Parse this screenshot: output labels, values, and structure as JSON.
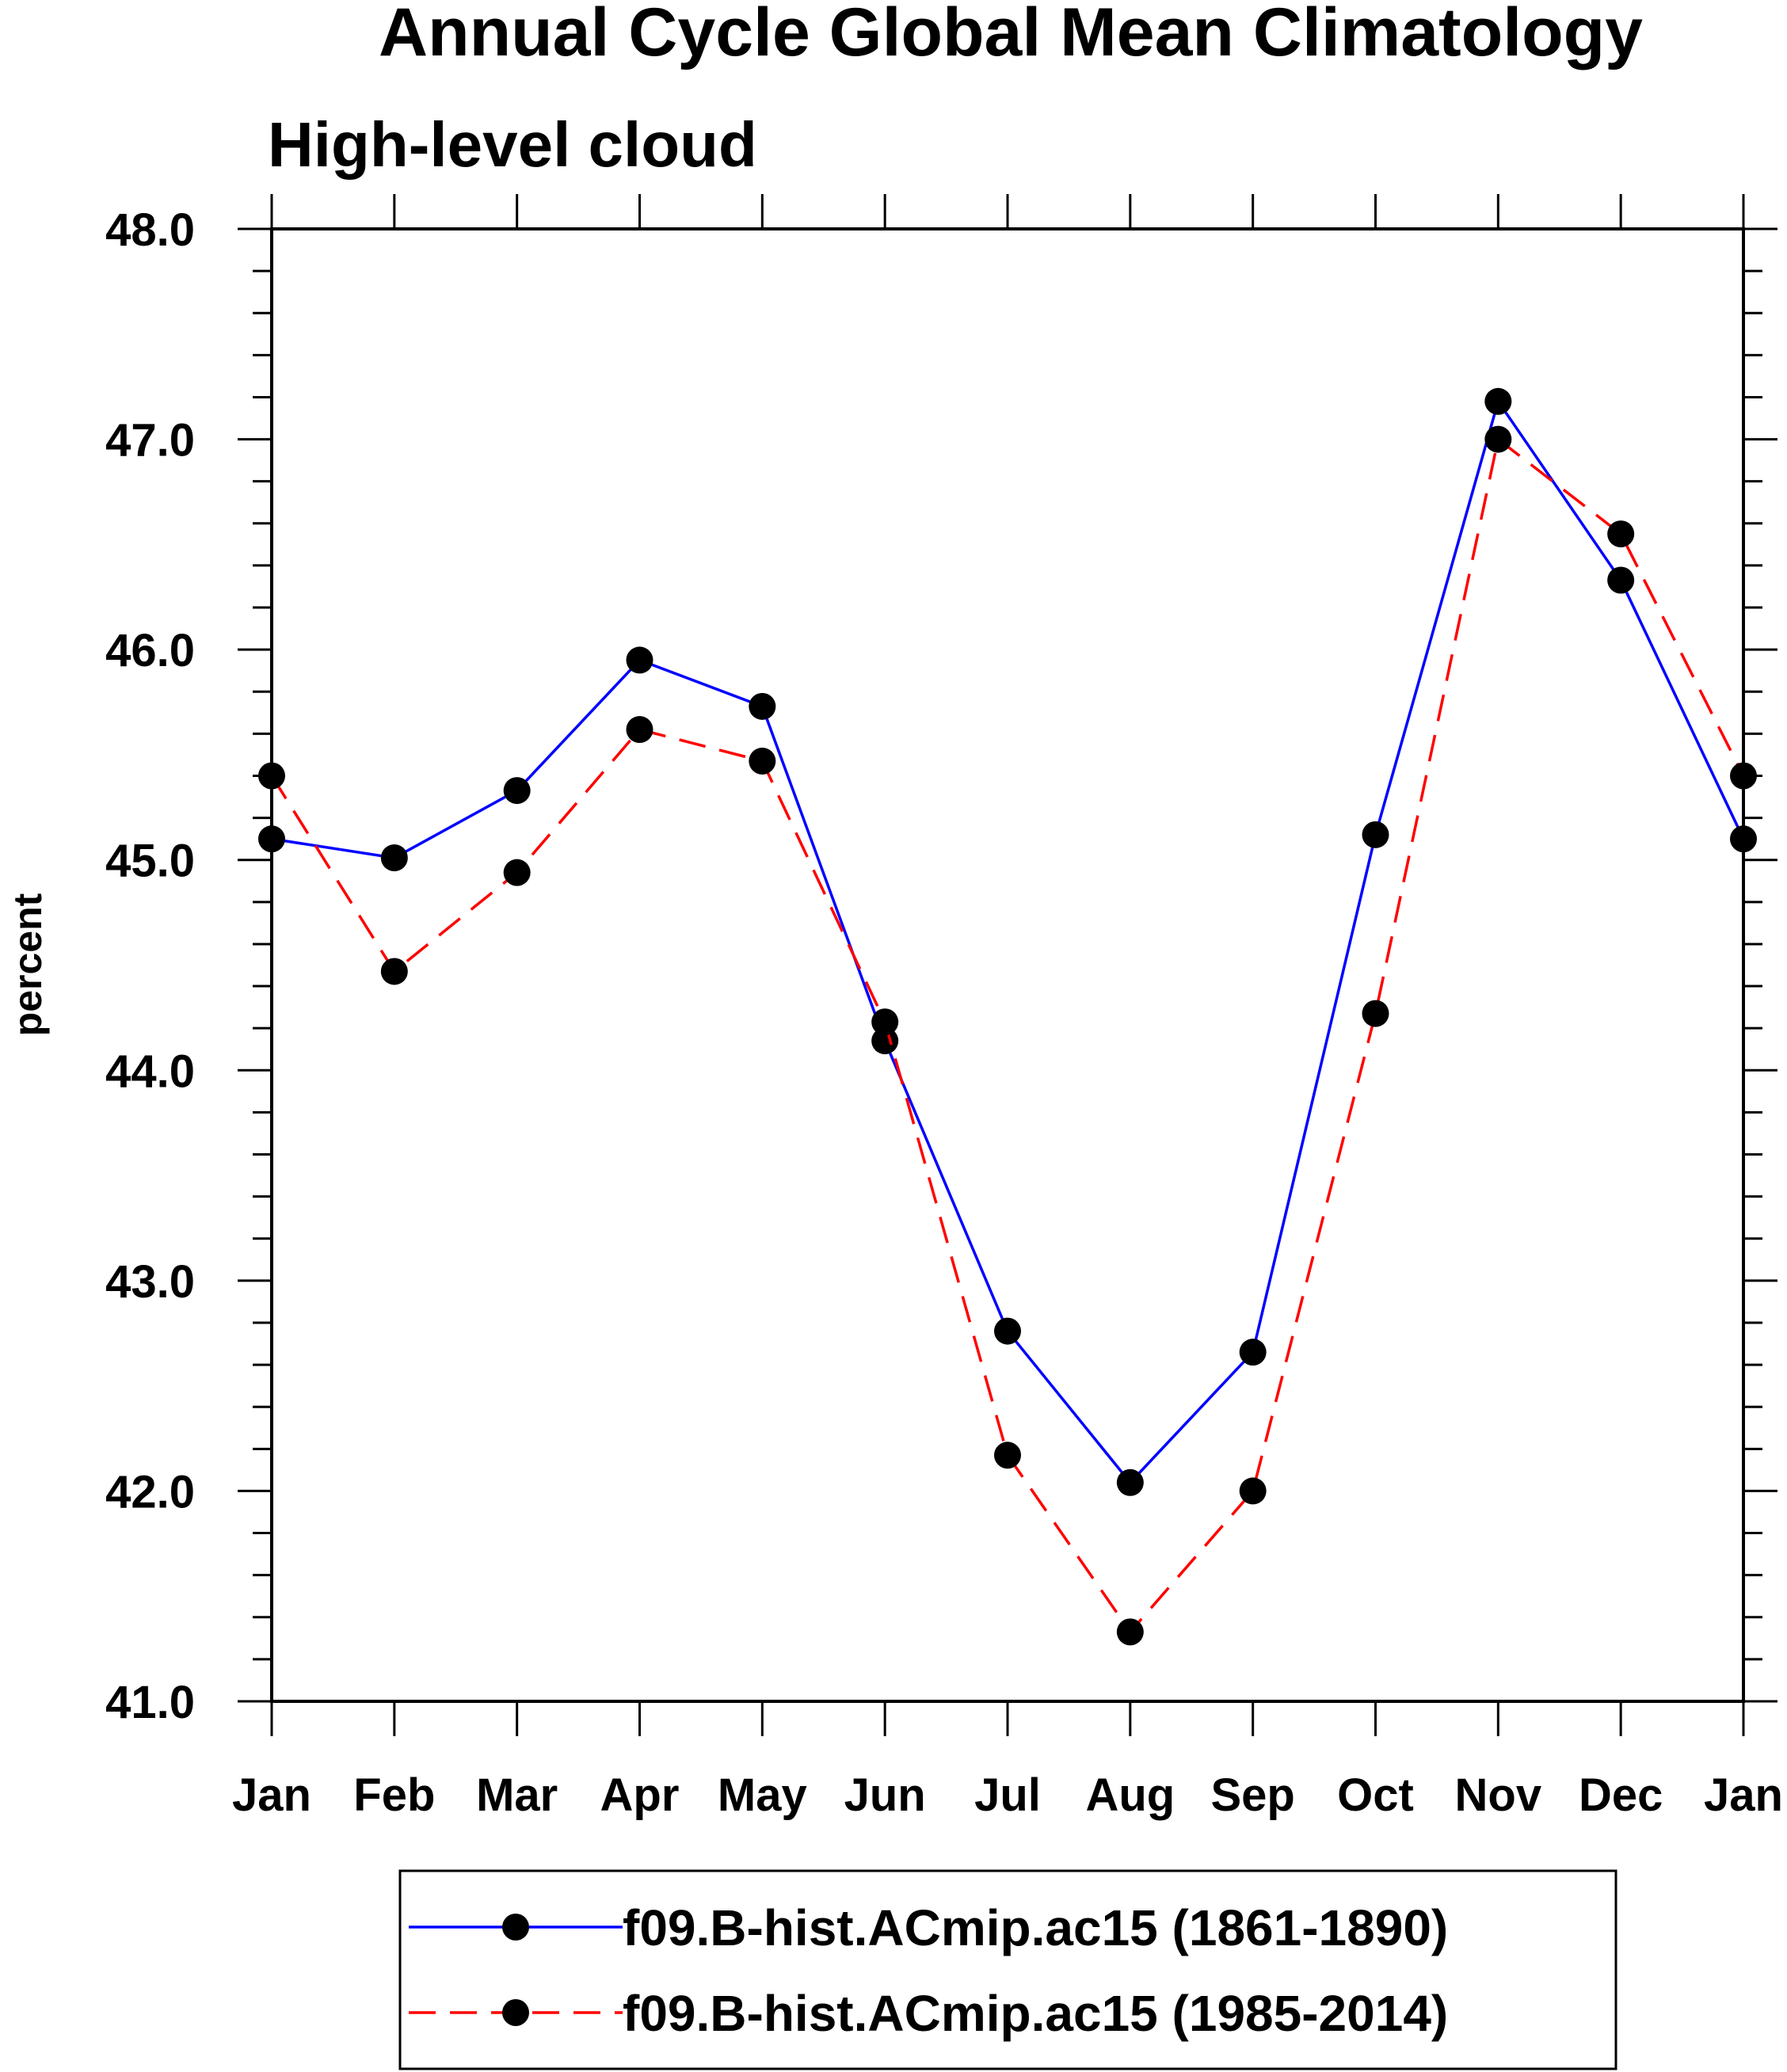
{
  "chart_data": {
    "type": "line",
    "title": "Annual Cycle Global Mean Climatology",
    "subtitle": "High-level cloud",
    "ylabel": "percent",
    "ylim": [
      41.0,
      48.0
    ],
    "yticks": [
      "41.0",
      "42.0",
      "43.0",
      "44.0",
      "45.0",
      "46.0",
      "47.0",
      "48.0"
    ],
    "categories": [
      "Jan",
      "Feb",
      "Mar",
      "Apr",
      "May",
      "Jun",
      "Jul",
      "Aug",
      "Sep",
      "Oct",
      "Nov",
      "Dec",
      "Jan"
    ],
    "series": [
      {
        "name": "f09.B-hist.ACmip.ac15 (1861-1890)",
        "color": "#0000ff",
        "dash": "solid",
        "values": [
          45.1,
          45.01,
          45.33,
          45.95,
          45.73,
          44.14,
          42.76,
          42.04,
          42.66,
          45.12,
          47.18,
          46.33,
          45.1
        ]
      },
      {
        "name": "f09.B-hist.ACmip.ac15 (1985-2014)",
        "color": "#ff0000",
        "dash": "dashed",
        "values": [
          45.4,
          44.47,
          44.94,
          45.62,
          45.47,
          44.23,
          42.17,
          41.33,
          42.0,
          44.27,
          47.0,
          46.55,
          45.4
        ]
      }
    ],
    "grid": false,
    "legend": "bottom"
  }
}
